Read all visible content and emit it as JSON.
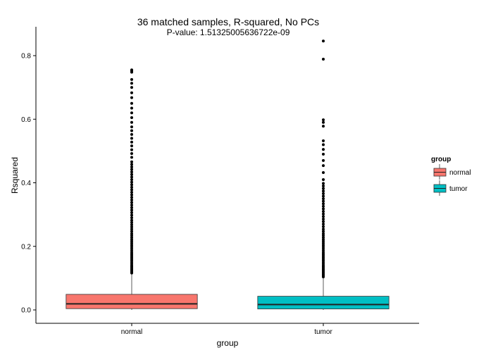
{
  "chart_data": {
    "type": "boxplot",
    "title": "36 matched samples, R-squared, No PCs",
    "subtitle": "P-value: 1.51325005636722e-09",
    "xlabel": "group",
    "ylabel": "Rsquared",
    "categories": [
      "normal",
      "tumor"
    ],
    "ylim": [
      -0.04,
      0.885
    ],
    "yticks": [
      0.0,
      0.2,
      0.4,
      0.6,
      0.8
    ],
    "ytick_labels": [
      "0.0",
      "0.2",
      "0.4",
      "0.6",
      "0.8"
    ],
    "grid": false,
    "legend": {
      "title": "group",
      "placement": "right",
      "entries": [
        "normal",
        "tumor"
      ]
    },
    "colors": {
      "normal": "#F8766D",
      "tumor": "#00BFC4"
    },
    "boxes": [
      {
        "name": "normal",
        "q1": 0.004,
        "median": 0.019,
        "q3": 0.049,
        "whisker_low": 0.0,
        "whisker_high": 0.116,
        "outliers": [
          0.116,
          0.12,
          0.124,
          0.128,
          0.132,
          0.136,
          0.14,
          0.145,
          0.15,
          0.155,
          0.16,
          0.165,
          0.17,
          0.175,
          0.18,
          0.186,
          0.192,
          0.198,
          0.204,
          0.21,
          0.216,
          0.222,
          0.228,
          0.234,
          0.24,
          0.247,
          0.254,
          0.261,
          0.268,
          0.275,
          0.282,
          0.29,
          0.298,
          0.306,
          0.314,
          0.322,
          0.33,
          0.338,
          0.346,
          0.354,
          0.362,
          0.37,
          0.378,
          0.386,
          0.394,
          0.402,
          0.41,
          0.418,
          0.426,
          0.434,
          0.442,
          0.45,
          0.458,
          0.466,
          0.48,
          0.492,
          0.504,
          0.516,
          0.528,
          0.54,
          0.552,
          0.564,
          0.576,
          0.59,
          0.605,
          0.62,
          0.635,
          0.65,
          0.668,
          0.683,
          0.7,
          0.713,
          0.725,
          0.748,
          0.752,
          0.755
        ]
      },
      {
        "name": "tumor",
        "q1": 0.003,
        "median": 0.017,
        "q3": 0.043,
        "whisker_low": 0.0,
        "whisker_high": 0.103,
        "outliers": [
          0.104,
          0.108,
          0.112,
          0.116,
          0.12,
          0.124,
          0.128,
          0.132,
          0.136,
          0.14,
          0.145,
          0.15,
          0.155,
          0.16,
          0.165,
          0.17,
          0.175,
          0.18,
          0.186,
          0.192,
          0.198,
          0.204,
          0.21,
          0.216,
          0.222,
          0.228,
          0.234,
          0.24,
          0.247,
          0.254,
          0.262,
          0.27,
          0.278,
          0.286,
          0.294,
          0.302,
          0.31,
          0.318,
          0.326,
          0.334,
          0.342,
          0.35,
          0.358,
          0.366,
          0.374,
          0.382,
          0.39,
          0.398,
          0.41,
          0.432,
          0.454,
          0.47,
          0.49,
          0.505,
          0.52,
          0.532,
          0.578,
          0.59,
          0.598,
          0.789,
          0.846
        ]
      }
    ]
  }
}
